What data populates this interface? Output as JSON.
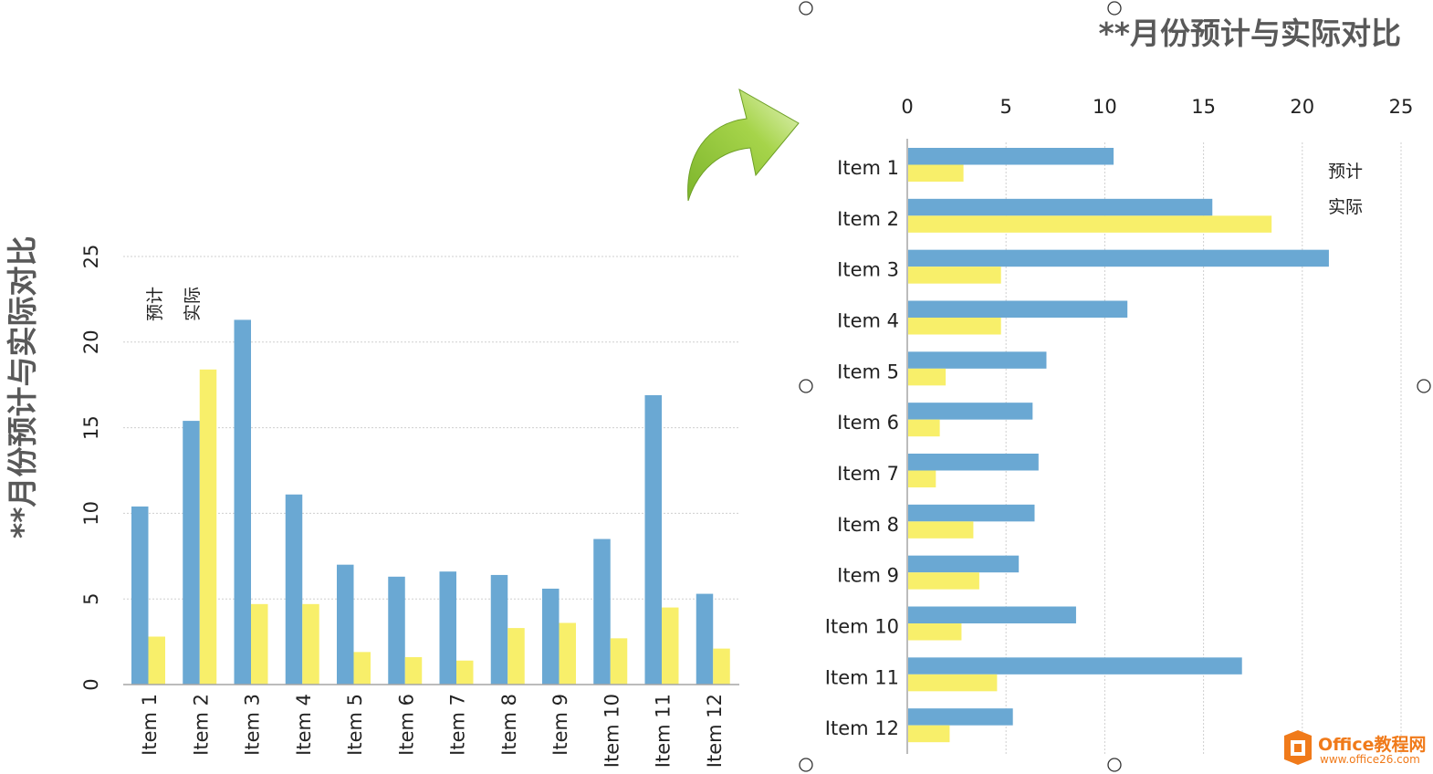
{
  "colors": {
    "predicted": "#6aa8d3",
    "actual": "#f8ef6a",
    "title": "#595959",
    "arrow": "#8fc43a",
    "logo_orange": "#f07a1a"
  },
  "chart_data": [
    {
      "type": "bar",
      "orientation": "vertical",
      "title": "**月份预计与实际对比",
      "categories": [
        "Item 1",
        "Item 2",
        "Item 3",
        "Item 4",
        "Item 5",
        "Item 6",
        "Item 7",
        "Item 8",
        "Item 9",
        "Item 10",
        "Item 11",
        "Item 12"
      ],
      "series": [
        {
          "name": "预计",
          "values": [
            10.4,
            15.4,
            21.3,
            11.1,
            7.0,
            6.3,
            6.6,
            6.4,
            5.6,
            8.5,
            16.9,
            5.3
          ]
        },
        {
          "name": "实际",
          "values": [
            2.8,
            18.4,
            4.7,
            4.7,
            1.9,
            1.6,
            1.4,
            3.3,
            3.6,
            2.7,
            4.5,
            2.1
          ]
        }
      ],
      "ylim": [
        0,
        25
      ],
      "yticks": [
        "0",
        "5",
        "10",
        "15",
        "20",
        "25"
      ],
      "grid": true,
      "legend": "top-left"
    },
    {
      "type": "bar",
      "orientation": "horizontal",
      "title": "**月份预计与实际对比",
      "categories": [
        "Item 1",
        "Item 2",
        "Item 3",
        "Item 4",
        "Item 5",
        "Item 6",
        "Item 7",
        "Item 8",
        "Item 9",
        "Item 10",
        "Item 11",
        "Item 12"
      ],
      "series": [
        {
          "name": "预计",
          "values": [
            10.4,
            15.4,
            21.3,
            11.1,
            7.0,
            6.3,
            6.6,
            6.4,
            5.6,
            8.5,
            16.9,
            5.3
          ]
        },
        {
          "name": "实际",
          "values": [
            2.8,
            18.4,
            4.7,
            4.7,
            1.9,
            1.6,
            1.4,
            3.3,
            3.6,
            2.7,
            4.5,
            2.1
          ]
        }
      ],
      "xlim": [
        0,
        25
      ],
      "xticks": [
        "0",
        "5",
        "10",
        "15",
        "20",
        "25"
      ],
      "grid": true,
      "legend": "top-right"
    }
  ],
  "watermark": {
    "brand": "Office教程网",
    "url": "www.office26.com"
  }
}
